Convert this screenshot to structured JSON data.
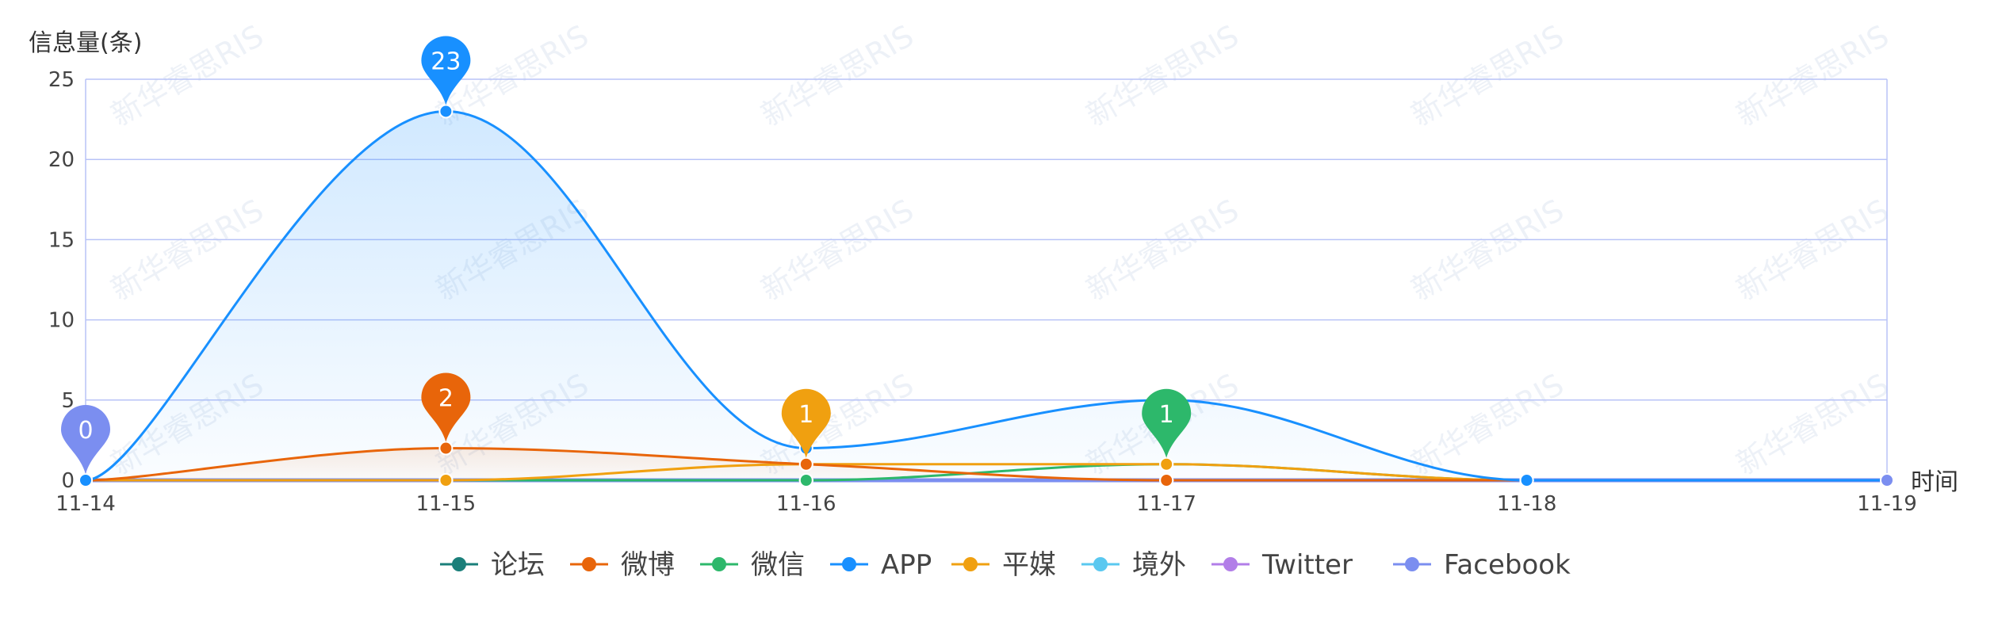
{
  "chart_data": {
    "type": "line",
    "ylabel": "信息量(条)",
    "xlabel": "时间",
    "categories": [
      "11-14",
      "11-15",
      "11-16",
      "11-17",
      "11-18",
      "11-19"
    ],
    "ylim": [
      0,
      25
    ],
    "yticks": [
      0,
      5,
      10,
      15,
      20,
      25
    ],
    "grid": true,
    "legend_position": "bottom",
    "watermark": "新华睿思RIS",
    "series": [
      {
        "name": "论坛",
        "color": "#1a7f7a",
        "values": [
          0,
          0,
          0,
          0,
          0,
          0
        ]
      },
      {
        "name": "微博",
        "color": "#e8650a",
        "values": [
          0,
          2,
          1,
          0,
          0,
          0
        ]
      },
      {
        "name": "微信",
        "color": "#2db86b",
        "values": [
          0,
          0,
          0,
          1,
          0,
          0
        ]
      },
      {
        "name": "APP",
        "color": "#1890ff",
        "values": [
          0,
          23,
          2,
          5,
          0,
          0
        ]
      },
      {
        "name": "平媒",
        "color": "#f0a010",
        "values": [
          0,
          0,
          1,
          1,
          0,
          0
        ]
      },
      {
        "name": "境外",
        "color": "#5ac8f0",
        "values": [
          0,
          0,
          0,
          0,
          0,
          0
        ]
      },
      {
        "name": "Twitter",
        "color": "#b27ee8",
        "values": [
          0,
          0,
          0,
          0,
          0,
          0
        ]
      },
      {
        "name": "Facebook",
        "color": "#7b8ef0",
        "values": [
          0,
          0,
          0,
          0,
          0,
          0
        ]
      }
    ],
    "annotations": [
      {
        "label": "0",
        "series": "Facebook",
        "index": 0,
        "value": 0
      },
      {
        "label": "23",
        "series": "APP",
        "index": 1,
        "value": 23
      },
      {
        "label": "2",
        "series": "微博",
        "index": 1,
        "value": 2
      },
      {
        "label": "1",
        "series": "平媒",
        "index": 2,
        "value": 1
      },
      {
        "label": "1",
        "series": "微信",
        "index": 3,
        "value": 1
      }
    ]
  }
}
